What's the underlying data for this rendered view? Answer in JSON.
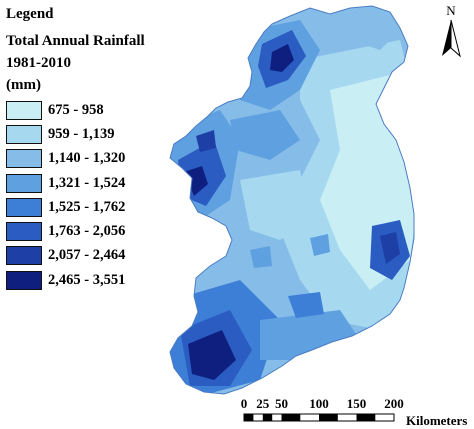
{
  "legend": {
    "title": "Legend",
    "subtitle_line1": "Total Annual Rainfall 1981-2010",
    "subtitle_line2": "(mm)",
    "items": [
      {
        "label": "675 - 958",
        "color": "#c9eef4"
      },
      {
        "label": "959 - 1,139",
        "color": "#a6d9f0"
      },
      {
        "label": "1,140 - 1,320",
        "color": "#86bde8"
      },
      {
        "label": "1,321 - 1,524",
        "color": "#5fa0e0"
      },
      {
        "label": "1,525 - 1,762",
        "color": "#3d7fd6"
      },
      {
        "label": "1,763 - 2,056",
        "color": "#2a5cc2"
      },
      {
        "label": "2,057 - 2,464",
        "color": "#1d3fa6"
      },
      {
        "label": "2,465 - 3,551",
        "color": "#0f1f80"
      }
    ]
  },
  "north_arrow": {
    "letter": "N",
    "icon": "north-arrow-icon"
  },
  "scale_bar": {
    "ticks": [
      "0",
      "25",
      "50",
      "100",
      "150",
      "200"
    ],
    "units": "Kilometers"
  }
}
